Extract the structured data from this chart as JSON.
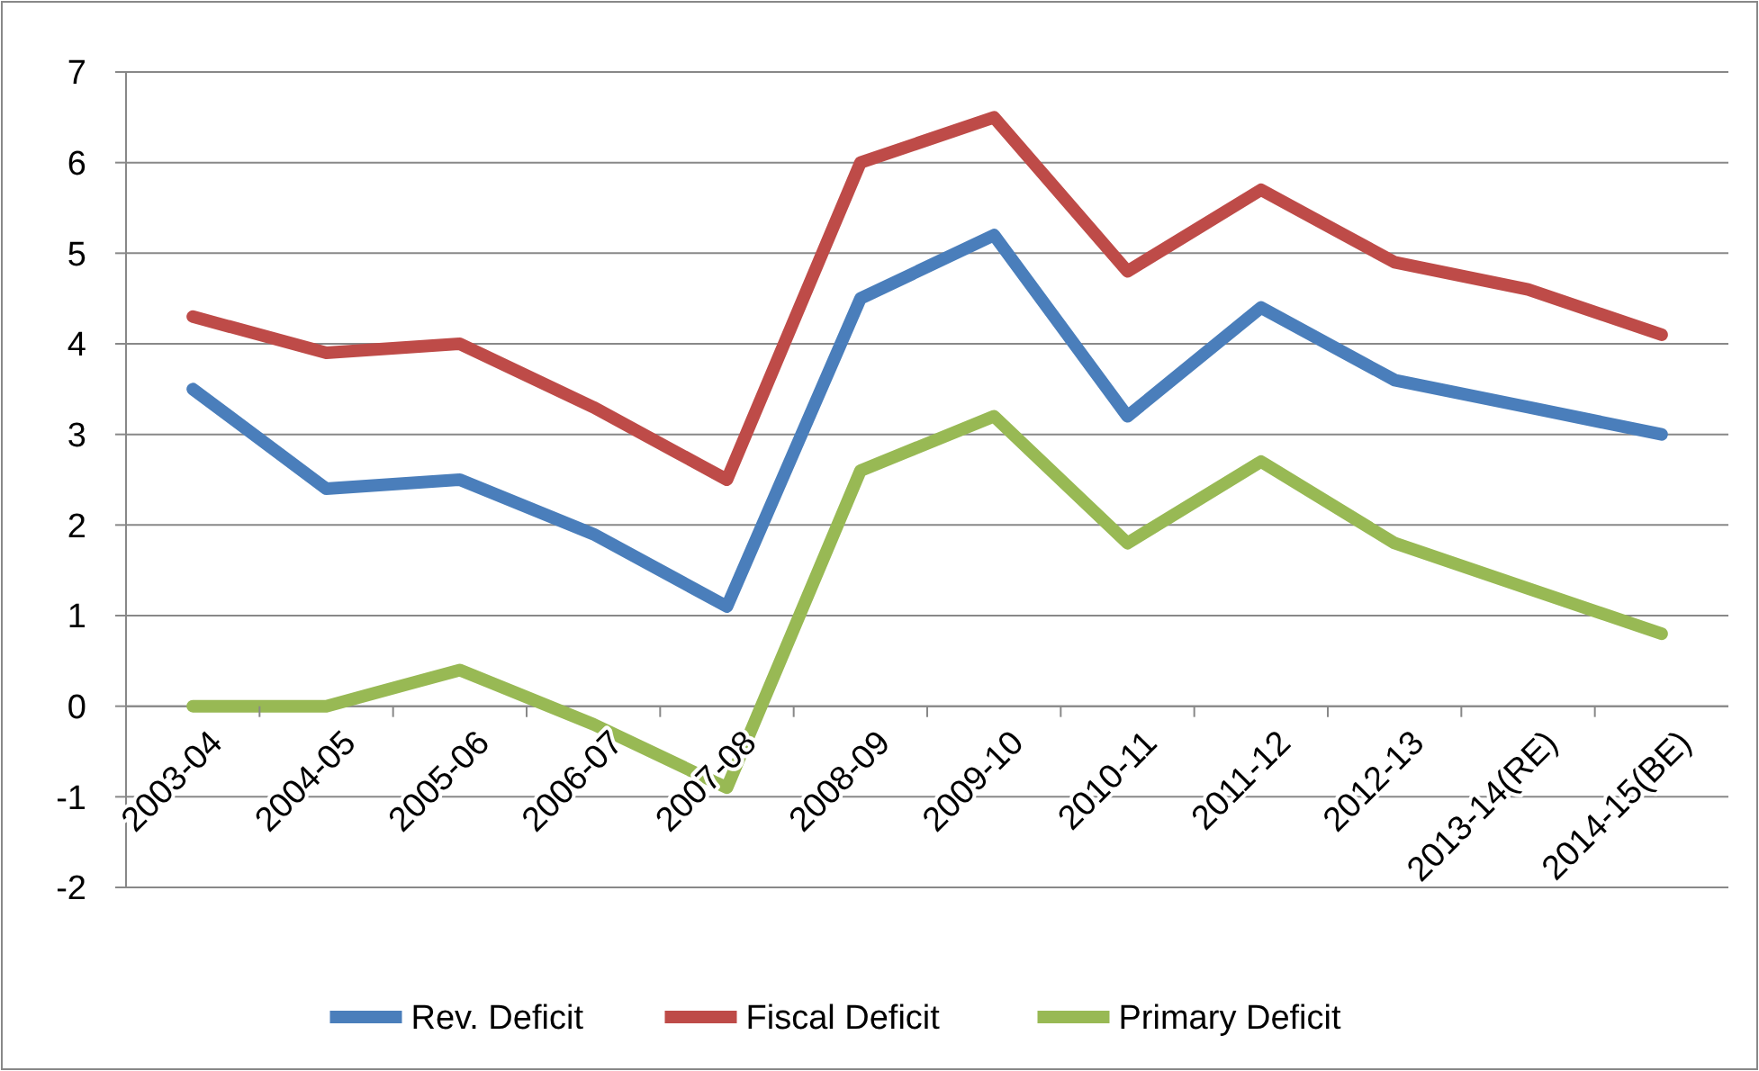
{
  "chart_data": {
    "type": "line",
    "categories": [
      "2003-04",
      "2004-05",
      "2005-06",
      "2006-07",
      "2007-08",
      "2008-09",
      "2009-10",
      "2010-11",
      "2011-12",
      "2012-13",
      "2013-14(RE)",
      "2014-15(BE)"
    ],
    "series": [
      {
        "name": "Rev. Deficit",
        "color": "#4a7ebb",
        "values": [
          3.5,
          2.4,
          2.5,
          1.9,
          1.1,
          4.5,
          5.2,
          3.2,
          4.4,
          3.6,
          3.3,
          3.0
        ]
      },
      {
        "name": "Fiscal Deficit",
        "color": "#be4b48",
        "values": [
          4.3,
          3.9,
          4.0,
          3.3,
          2.5,
          6.0,
          6.5,
          4.8,
          5.7,
          4.9,
          4.6,
          4.1
        ]
      },
      {
        "name": "Primary Deficit",
        "color": "#98b954",
        "values": [
          0.0,
          0.0,
          0.4,
          -0.2,
          -0.9,
          2.6,
          3.2,
          1.8,
          2.7,
          1.8,
          1.3,
          0.8
        ]
      }
    ],
    "ylim": [
      -2,
      7
    ],
    "yticks": [
      -2,
      -1,
      0,
      1,
      2,
      3,
      4,
      5,
      6,
      7
    ],
    "grid": "y",
    "legend": "bottom",
    "marker": "none",
    "line_style": "solid"
  }
}
